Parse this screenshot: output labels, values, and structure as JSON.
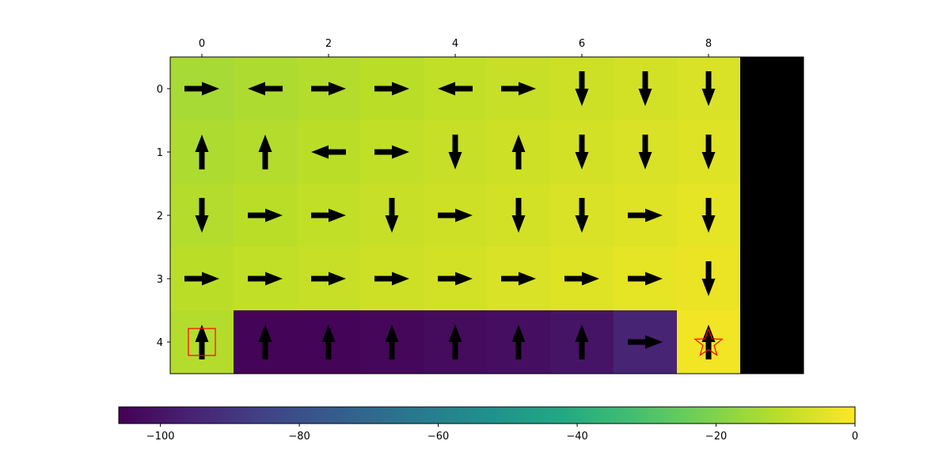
{
  "chart_data": [
    {
      "type": "heatmap",
      "title": "",
      "xlabel": "",
      "ylabel": "",
      "x_ticks": [
        0,
        2,
        4,
        6,
        8
      ],
      "y_ticks": [
        0,
        1,
        2,
        3,
        4
      ],
      "x_tick_position": "top",
      "grid": false,
      "n_rows": 5,
      "n_cols": 10,
      "values": [
        [
          -14,
          -13,
          -12,
          -11,
          -10,
          -9,
          -8,
          -7,
          -6,
          null
        ],
        [
          -13,
          -12,
          -11,
          -10,
          -9,
          -8,
          -7,
          -6,
          -5,
          null
        ],
        [
          -12,
          -11,
          -10,
          -9,
          -8,
          -7,
          -6,
          -5,
          -4,
          null
        ],
        [
          -11,
          -10,
          -9,
          -8,
          -7,
          -6,
          -5,
          -4,
          -3,
          null
        ],
        [
          -12,
          -105,
          -105,
          -104,
          -103,
          -102,
          -100,
          -95,
          -2,
          null
        ]
      ],
      "policy_arrows": [
        [
          "right",
          "left",
          "right",
          "right",
          "left",
          "right",
          "down",
          "down",
          "down",
          null
        ],
        [
          "up",
          "up",
          "left",
          "right",
          "down",
          "up",
          "down",
          "down",
          "down",
          null
        ],
        [
          "down",
          "right",
          "right",
          "down",
          "right",
          "down",
          "down",
          "right",
          "down",
          null
        ],
        [
          "right",
          "right",
          "right",
          "right",
          "right",
          "right",
          "right",
          "right",
          "down",
          null
        ],
        [
          "up",
          "up",
          "up",
          "up",
          "up",
          "up",
          "up",
          "right",
          "up",
          null
        ]
      ],
      "start_marker": {
        "row": 4,
        "col": 0,
        "shape": "square",
        "color": "#ff0000"
      },
      "goal_marker": {
        "row": 4,
        "col": 8,
        "shape": "star",
        "color": "#ff0000"
      },
      "masked_color": "#000000",
      "arrow_color": "#000000"
    },
    {
      "type": "colorbar",
      "orientation": "horizontal",
      "colormap": "viridis",
      "range": [
        -106,
        0
      ],
      "ticks": [
        -100,
        -80,
        -60,
        -40,
        -20,
        0
      ],
      "tick_labels": [
        "−100",
        "−80",
        "−60",
        "−40",
        "−20",
        "0"
      ]
    }
  ]
}
